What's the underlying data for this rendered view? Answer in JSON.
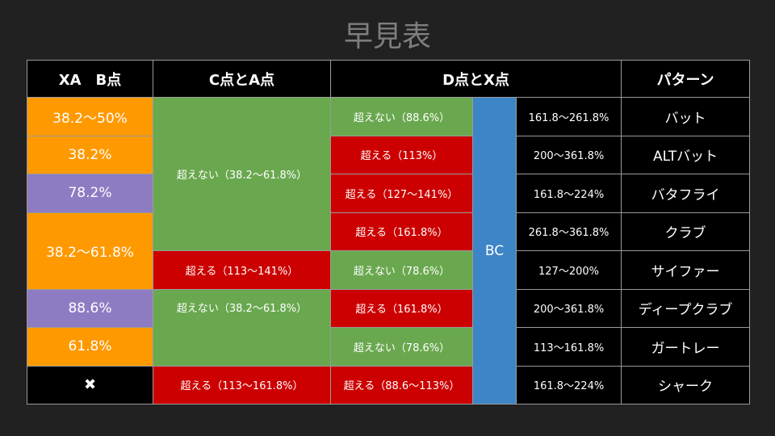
{
  "title": "早見表",
  "headers": {
    "xa_b": "XA　B点",
    "c_a": "C点とA点",
    "d_x": "D点とX点",
    "pattern": "パターン"
  },
  "rows": [
    {
      "xab": "38.2〜50%",
      "d": "超えない（88.6%）",
      "ratio": "161.8〜261.8%",
      "pattern": "バット"
    },
    {
      "xab": "38.2%",
      "d": "超える（113%）",
      "ratio": "200〜361.8%",
      "pattern": "ALTバット"
    },
    {
      "xab": "78.2%",
      "d": "超える（127〜141%）",
      "ratio": "161.8〜224%",
      "pattern": "バタフライ"
    },
    {
      "xab": "38.2〜61.8%",
      "d": "超える（161.8%）",
      "ratio": "261.8〜361.8%",
      "pattern": "クラブ"
    },
    {
      "d": "超えない（78.6%）",
      "ratio": "127〜200%",
      "pattern": "サイファー"
    },
    {
      "xab": "88.6%",
      "d": "超える（161.8%）",
      "ratio": "200〜361.8%",
      "pattern": "ディープクラブ"
    },
    {
      "xab": "61.8%",
      "d": "超えない（78.6%）",
      "ratio": "113〜161.8%",
      "pattern": "ガートレー"
    },
    {
      "xab": "✖",
      "d": "超える（88.6〜113%）",
      "ratio": "161.8〜224%",
      "pattern": "シャーク"
    }
  ],
  "ca_groups": [
    "超えない（38.2〜61.8%）",
    "超える（113〜141%）",
    "超えない（38.2〜61.8%）",
    "超える（113〜161.8%）"
  ],
  "bc_label": "BC",
  "colors": {
    "background": "#212121",
    "orange": "#ff9900",
    "purple": "#8e7cc3",
    "green": "#6aa84f",
    "red": "#cc0000",
    "blue": "#3d85c6",
    "header": "#000000"
  }
}
